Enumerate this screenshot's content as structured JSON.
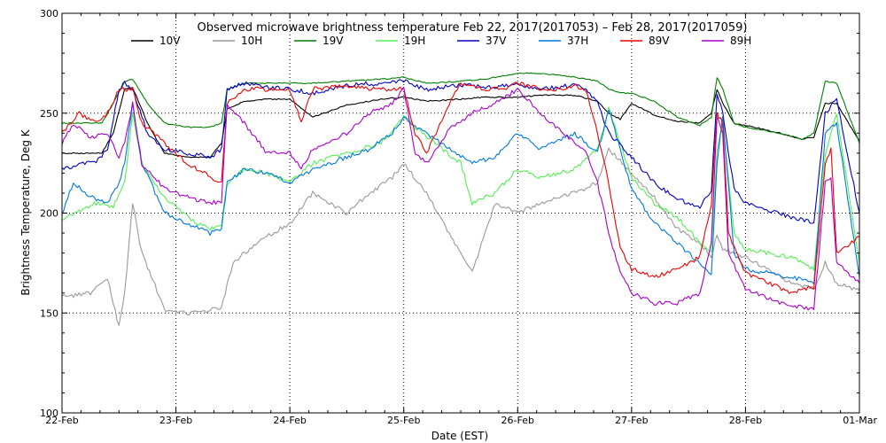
{
  "chart_data": {
    "type": "line",
    "title": "Observed microwave brightness temperature Feb 22, 2017(2017053) – Feb 28, 2017(2017059)",
    "xlabel": "Date (EST)",
    "ylabel": "Brightness Temperature, Deg K",
    "ylim": [
      100,
      300
    ],
    "xlim": [
      0,
      7
    ],
    "grid": true,
    "legend_position": "top",
    "y_ticks": [
      {
        "value": 100,
        "label": "100"
      },
      {
        "value": 150,
        "label": "150"
      },
      {
        "value": 200,
        "label": "200"
      },
      {
        "value": 250,
        "label": "250"
      },
      {
        "value": 300,
        "label": "300"
      }
    ],
    "x_ticks": [
      {
        "value": 0,
        "label": "22-Feb"
      },
      {
        "value": 1,
        "label": "23-Feb"
      },
      {
        "value": 2,
        "label": "24-Feb"
      },
      {
        "value": 3,
        "label": "25-Feb"
      },
      {
        "value": 4,
        "label": "26-Feb"
      },
      {
        "value": 5,
        "label": "27-Feb"
      },
      {
        "value": 6,
        "label": "28-Feb"
      },
      {
        "value": 7,
        "label": "01-Mar"
      }
    ],
    "series": [
      {
        "name": "10V",
        "color": "#000000",
        "x": [
          0,
          0.35,
          0.45,
          0.55,
          0.62,
          0.75,
          0.9,
          1.1,
          1.3,
          1.4,
          1.45,
          1.6,
          1.8,
          2.0,
          2.2,
          2.5,
          2.8,
          3.0,
          3.2,
          3.5,
          3.7,
          4.0,
          4.2,
          4.5,
          4.7,
          4.8,
          4.9,
          5.0,
          5.2,
          5.4,
          5.6,
          5.7,
          5.75,
          5.8,
          5.9,
          6.0,
          6.3,
          6.5,
          6.6,
          6.7,
          6.8,
          7.0
        ],
        "values": [
          230,
          230,
          240,
          262,
          263,
          245,
          230,
          228,
          228,
          235,
          252,
          256,
          257,
          257,
          248,
          254,
          257,
          258,
          256,
          257,
          258,
          258,
          259,
          259,
          256,
          250,
          247,
          255,
          249,
          246,
          245,
          250,
          262,
          255,
          245,
          244,
          240,
          237,
          238,
          255,
          255,
          236
        ]
      },
      {
        "name": "10H",
        "color": "#999999",
        "x": [
          0,
          0.25,
          0.4,
          0.5,
          0.55,
          0.62,
          0.7,
          0.9,
          1.0,
          1.2,
          1.4,
          1.5,
          1.7,
          2.0,
          2.2,
          2.5,
          2.7,
          2.9,
          3.0,
          3.2,
          3.4,
          3.6,
          3.8,
          4.0,
          4.2,
          4.5,
          4.7,
          4.8,
          5.0,
          5.2,
          5.4,
          5.6,
          5.7,
          5.75,
          5.8,
          6.0,
          6.4,
          6.6,
          6.7,
          6.8,
          7.0
        ],
        "values": [
          158,
          160,
          167,
          143,
          160,
          205,
          180,
          152,
          150,
          150,
          153,
          175,
          185,
          195,
          210,
          200,
          210,
          218,
          225,
          210,
          190,
          170,
          205,
          200,
          205,
          210,
          215,
          232,
          220,
          208,
          192,
          185,
          178,
          190,
          182,
          178,
          165,
          162,
          175,
          165,
          161
        ]
      },
      {
        "name": "19V",
        "color": "#008000",
        "x": [
          0,
          0.35,
          0.45,
          0.55,
          0.62,
          0.75,
          0.9,
          1.1,
          1.3,
          1.4,
          1.45,
          1.6,
          1.8,
          2.0,
          2.2,
          2.5,
          2.8,
          3.0,
          3.2,
          3.5,
          3.7,
          4.0,
          4.2,
          4.5,
          4.7,
          4.8,
          4.9,
          5.0,
          5.2,
          5.4,
          5.6,
          5.7,
          5.75,
          5.8,
          5.9,
          6.0,
          6.3,
          6.5,
          6.6,
          6.7,
          6.8,
          7.0
        ],
        "values": [
          245,
          245,
          255,
          266,
          267,
          255,
          245,
          243,
          243,
          245,
          262,
          265,
          265,
          265,
          265,
          266,
          267,
          268,
          265,
          266,
          267,
          270,
          270,
          268,
          266,
          262,
          260,
          260,
          256,
          248,
          244,
          248,
          268,
          262,
          245,
          243,
          240,
          237,
          240,
          266,
          265,
          235
        ]
      },
      {
        "name": "19H",
        "color": "#55ee55",
        "x": [
          0,
          0.3,
          0.45,
          0.55,
          0.62,
          0.7,
          0.9,
          1.1,
          1.3,
          1.4,
          1.45,
          1.6,
          1.8,
          2.0,
          2.2,
          2.5,
          2.8,
          3.0,
          3.2,
          3.5,
          3.6,
          3.8,
          4.0,
          4.2,
          4.5,
          4.7,
          4.8,
          5.0,
          5.2,
          5.4,
          5.6,
          5.7,
          5.75,
          5.8,
          5.9,
          6.0,
          6.4,
          6.6,
          6.7,
          6.8,
          7.0
        ],
        "values": [
          197,
          205,
          203,
          215,
          250,
          225,
          208,
          198,
          192,
          195,
          215,
          222,
          220,
          215,
          225,
          230,
          235,
          248,
          238,
          225,
          205,
          210,
          222,
          218,
          222,
          232,
          252,
          218,
          205,
          198,
          185,
          180,
          232,
          245,
          190,
          182,
          178,
          172,
          230,
          250,
          175
        ]
      },
      {
        "name": "37V",
        "color": "#0000c0",
        "x": [
          0,
          0.3,
          0.4,
          0.5,
          0.55,
          0.62,
          0.75,
          0.9,
          1.1,
          1.3,
          1.4,
          1.45,
          1.6,
          1.8,
          2.0,
          2.2,
          2.5,
          2.8,
          3.0,
          3.2,
          3.5,
          3.7,
          4.0,
          4.2,
          4.5,
          4.6,
          4.7,
          4.8,
          5.0,
          5.2,
          5.4,
          5.6,
          5.7,
          5.75,
          5.8,
          5.9,
          6.0,
          6.4,
          6.6,
          6.7,
          6.8,
          7.0
        ],
        "values": [
          222,
          226,
          232,
          262,
          265,
          262,
          240,
          232,
          230,
          228,
          232,
          262,
          265,
          263,
          262,
          260,
          264,
          265,
          266,
          262,
          264,
          263,
          264,
          262,
          264,
          262,
          255,
          240,
          228,
          215,
          207,
          203,
          212,
          260,
          250,
          212,
          205,
          198,
          195,
          250,
          257,
          200
        ]
      },
      {
        "name": "37H",
        "color": "#0077dd",
        "x": [
          0,
          0.1,
          0.25,
          0.4,
          0.5,
          0.55,
          0.62,
          0.7,
          0.9,
          1.1,
          1.3,
          1.4,
          1.45,
          1.6,
          1.8,
          2.0,
          2.2,
          2.5,
          2.7,
          2.9,
          3.0,
          3.2,
          3.4,
          3.6,
          3.8,
          4.0,
          4.2,
          4.5,
          4.7,
          4.8,
          5.0,
          5.2,
          5.4,
          5.6,
          5.7,
          5.75,
          5.8,
          5.9,
          6.0,
          6.4,
          6.6,
          6.7,
          6.8,
          7.0
        ],
        "values": [
          200,
          215,
          208,
          205,
          215,
          225,
          255,
          225,
          200,
          195,
          190,
          192,
          215,
          222,
          220,
          215,
          222,
          228,
          232,
          240,
          248,
          240,
          232,
          225,
          228,
          240,
          232,
          240,
          230,
          252,
          212,
          195,
          185,
          175,
          170,
          225,
          248,
          180,
          172,
          168,
          165,
          240,
          245,
          168
        ]
      },
      {
        "name": "89V",
        "color": "#ee0000",
        "x": [
          0,
          0.15,
          0.3,
          0.4,
          0.5,
          0.55,
          0.62,
          0.7,
          0.9,
          1.1,
          1.3,
          1.4,
          1.45,
          1.6,
          1.8,
          2.0,
          2.1,
          2.2,
          2.5,
          2.7,
          3.0,
          3.1,
          3.2,
          3.4,
          3.5,
          3.7,
          3.9,
          4.0,
          4.2,
          4.4,
          4.5,
          4.6,
          4.7,
          4.8,
          4.9,
          5.0,
          5.2,
          5.4,
          5.6,
          5.7,
          5.75,
          5.8,
          5.85,
          6.0,
          6.4,
          6.6,
          6.7,
          6.75,
          6.8,
          7.0
        ],
        "values": [
          240,
          250,
          245,
          250,
          262,
          262,
          262,
          245,
          235,
          225,
          218,
          215,
          255,
          262,
          262,
          262,
          245,
          262,
          264,
          262,
          262,
          240,
          230,
          255,
          265,
          262,
          262,
          265,
          262,
          262,
          264,
          262,
          240,
          215,
          182,
          172,
          168,
          172,
          178,
          205,
          250,
          245,
          190,
          170,
          160,
          163,
          225,
          232,
          180,
          188
        ]
      },
      {
        "name": "89H",
        "color": "#aa00cc",
        "x": [
          0,
          0.1,
          0.25,
          0.4,
          0.5,
          0.55,
          0.62,
          0.7,
          0.9,
          1.1,
          1.3,
          1.4,
          1.45,
          1.6,
          1.8,
          2.0,
          2.1,
          2.2,
          2.5,
          2.7,
          2.9,
          3.0,
          3.1,
          3.2,
          3.4,
          3.6,
          3.8,
          4.0,
          4.2,
          4.4,
          4.5,
          4.6,
          4.7,
          4.8,
          4.9,
          5.0,
          5.2,
          5.4,
          5.6,
          5.7,
          5.75,
          5.8,
          5.85,
          6.0,
          6.3,
          6.6,
          6.7,
          6.75,
          6.8,
          7.0
        ],
        "values": [
          235,
          245,
          238,
          240,
          228,
          235,
          255,
          225,
          212,
          208,
          205,
          206,
          255,
          245,
          230,
          230,
          222,
          232,
          240,
          250,
          255,
          262,
          230,
          225,
          242,
          250,
          255,
          262,
          250,
          240,
          235,
          230,
          215,
          190,
          170,
          160,
          155,
          155,
          160,
          185,
          248,
          240,
          180,
          162,
          155,
          152,
          215,
          218,
          175,
          165
        ]
      }
    ]
  }
}
